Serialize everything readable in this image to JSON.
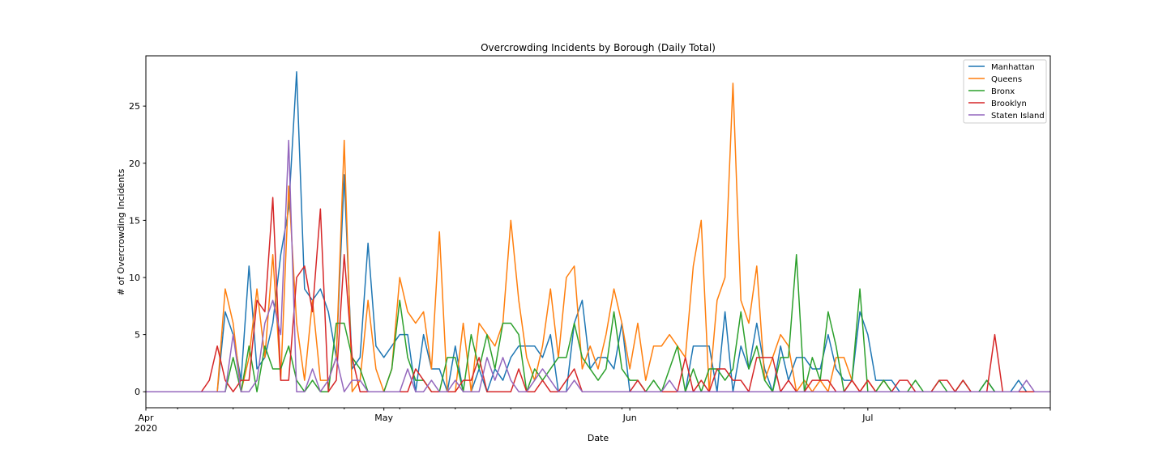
{
  "chart_data": {
    "type": "line",
    "title": "Overcrowding Incidents by Borough (Daily Total)",
    "xlabel": "Date",
    "ylabel": "# of Overcrowding Incidents",
    "x_start": "2020-04-01",
    "x_end": "2020-07-24",
    "xlim": [
      "2020-04-01",
      "2020-07-24"
    ],
    "ylim": [
      -1.4,
      29.4
    ],
    "y_ticks": [
      0,
      5,
      10,
      15,
      20,
      25
    ],
    "x_ticks": [
      {
        "date": "2020-04-01",
        "label": "Apr",
        "sublabel": "2020"
      },
      {
        "date": "2020-05-01",
        "label": "May",
        "sublabel": ""
      },
      {
        "date": "2020-06-01",
        "label": "Jun",
        "sublabel": ""
      },
      {
        "date": "2020-07-01",
        "label": "Jul",
        "sublabel": ""
      }
    ],
    "grid": false,
    "legend_position": "top-right",
    "series": [
      {
        "name": "Manhattan",
        "color": "#1f77b4",
        "values": [
          0,
          0,
          0,
          0,
          0,
          0,
          0,
          0,
          0,
          0,
          7,
          5,
          1,
          11,
          2,
          3,
          6,
          12,
          16,
          28,
          9,
          8,
          9,
          7,
          3,
          19,
          2,
          3,
          13,
          4,
          3,
          4,
          5,
          5,
          0,
          5,
          2,
          2,
          0,
          4,
          0,
          0,
          2,
          0,
          2,
          1,
          3,
          4,
          4,
          4,
          3,
          5,
          0,
          0,
          6,
          8,
          2,
          3,
          3,
          2,
          6,
          0,
          0,
          0,
          0,
          0,
          0,
          0,
          0,
          4,
          4,
          4,
          0,
          7,
          0,
          4,
          2,
          6,
          2,
          0,
          4,
          1,
          3,
          3,
          2,
          2,
          5,
          2,
          1,
          1,
          7,
          5,
          1,
          1,
          1,
          0,
          0,
          0,
          0,
          0,
          0,
          0,
          0,
          0,
          0,
          0,
          1,
          0,
          0,
          0,
          1,
          0,
          0,
          0,
          0
        ]
      },
      {
        "name": "Queens",
        "color": "#ff7f0e",
        "values": [
          0,
          0,
          0,
          0,
          0,
          0,
          0,
          0,
          0,
          0,
          9,
          6,
          0,
          3,
          9,
          3,
          12,
          1,
          18,
          6,
          1,
          8,
          1,
          1,
          3,
          22,
          0,
          1,
          8,
          2,
          0,
          2,
          10,
          7,
          6,
          7,
          2,
          14,
          0,
          0,
          6,
          0,
          6,
          5,
          4,
          6,
          15,
          8,
          3,
          1,
          4,
          9,
          3,
          10,
          11,
          2,
          4,
          2,
          5,
          9,
          6,
          2,
          6,
          1,
          4,
          4,
          5,
          4,
          3,
          11,
          15,
          0,
          8,
          10,
          27,
          8,
          6,
          11,
          1,
          3,
          5,
          4,
          0,
          1,
          0,
          1,
          0,
          3,
          3,
          1,
          0,
          1,
          0,
          1,
          0,
          0,
          0,
          0,
          0,
          0,
          0,
          0,
          0,
          0,
          0,
          0,
          0,
          0,
          0,
          0,
          0,
          0,
          0,
          0,
          0
        ]
      },
      {
        "name": "Bronx",
        "color": "#2ca02c",
        "values": [
          0,
          0,
          0,
          0,
          0,
          0,
          0,
          0,
          0,
          0,
          0,
          3,
          0,
          4,
          0,
          4,
          2,
          2,
          4,
          1,
          0,
          1,
          0,
          0,
          6,
          6,
          3,
          2,
          0,
          0,
          0,
          2,
          8,
          3,
          1,
          1,
          0,
          0,
          3,
          3,
          0,
          5,
          2,
          5,
          2,
          6,
          6,
          5,
          0,
          2,
          1,
          2,
          3,
          3,
          6,
          3,
          2,
          1,
          2,
          7,
          2,
          1,
          1,
          0,
          1,
          0,
          2,
          4,
          0,
          2,
          0,
          2,
          2,
          1,
          2,
          7,
          2,
          4,
          1,
          0,
          3,
          3,
          12,
          0,
          3,
          1,
          7,
          4,
          0,
          1,
          9,
          0,
          0,
          1,
          0,
          0,
          0,
          1,
          0,
          0,
          1,
          0,
          0,
          1,
          0,
          0,
          1,
          0,
          0,
          0,
          0,
          0,
          0,
          0,
          0
        ]
      },
      {
        "name": "Brooklyn",
        "color": "#d62728",
        "values": [
          0,
          0,
          0,
          0,
          0,
          0,
          0,
          0,
          1,
          4,
          1,
          0,
          1,
          1,
          8,
          7,
          17,
          1,
          1,
          10,
          11,
          7,
          16,
          0,
          1,
          12,
          3,
          0,
          0,
          0,
          0,
          0,
          0,
          0,
          2,
          1,
          0,
          0,
          0,
          0,
          1,
          1,
          3,
          0,
          0,
          0,
          0,
          2,
          0,
          0,
          1,
          0,
          0,
          1,
          2,
          0,
          0,
          0,
          0,
          0,
          0,
          0,
          1,
          0,
          0,
          0,
          0,
          0,
          3,
          0,
          1,
          0,
          2,
          2,
          1,
          1,
          0,
          3,
          3,
          3,
          0,
          1,
          0,
          0,
          1,
          1,
          1,
          0,
          0,
          1,
          0,
          1,
          0,
          0,
          0,
          1,
          1,
          0,
          0,
          0,
          1,
          1,
          0,
          1,
          0,
          0,
          0,
          5,
          0,
          0,
          0,
          0,
          0,
          0,
          0
        ]
      },
      {
        "name": "Staten Island",
        "color": "#9467bd",
        "values": [
          0,
          0,
          0,
          0,
          0,
          0,
          0,
          0,
          0,
          0,
          0,
          5,
          0,
          0,
          1,
          6,
          8,
          5,
          22,
          0,
          0,
          2,
          0,
          1,
          3,
          0,
          1,
          1,
          0,
          0,
          0,
          0,
          0,
          2,
          0,
          0,
          1,
          0,
          0,
          1,
          0,
          0,
          0,
          3,
          1,
          3,
          1,
          0,
          0,
          1,
          2,
          1,
          0,
          0,
          1,
          0,
          0,
          0,
          0,
          0,
          0,
          0,
          0,
          0,
          0,
          0,
          1,
          0,
          0,
          0,
          0,
          0,
          0,
          0,
          0,
          0,
          0,
          0,
          0,
          0,
          0,
          0,
          0,
          0,
          0,
          0,
          0,
          0,
          0,
          0,
          0,
          0,
          0,
          0,
          0,
          0,
          0,
          0,
          0,
          0,
          0,
          0,
          0,
          0,
          0,
          0,
          0,
          0,
          0,
          0,
          0,
          1,
          0,
          0,
          0
        ]
      }
    ]
  }
}
